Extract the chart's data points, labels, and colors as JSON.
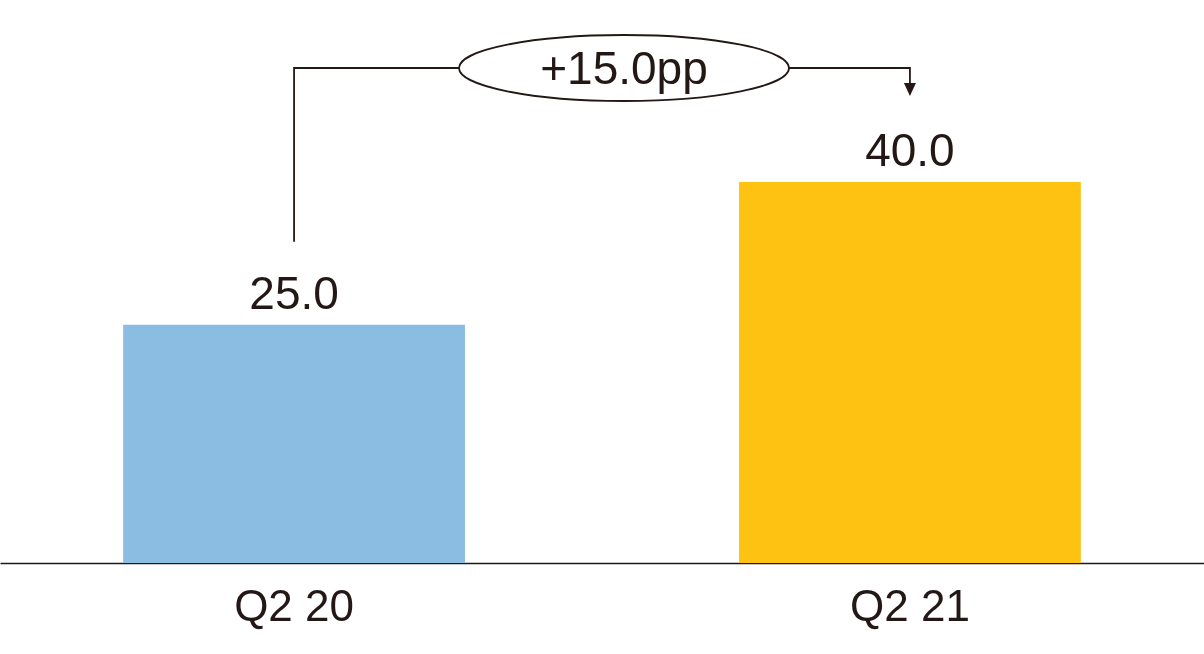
{
  "chart_data": {
    "type": "bar",
    "categories": [
      "Q2 20",
      "Q2 21"
    ],
    "values": [
      25,
      40
    ],
    "colors": [
      "#8bbde3",
      "#fec312"
    ],
    "value_labels": [
      "25.0",
      "40.0"
    ],
    "annotations": [
      "+15.0pp"
    ]
  }
}
